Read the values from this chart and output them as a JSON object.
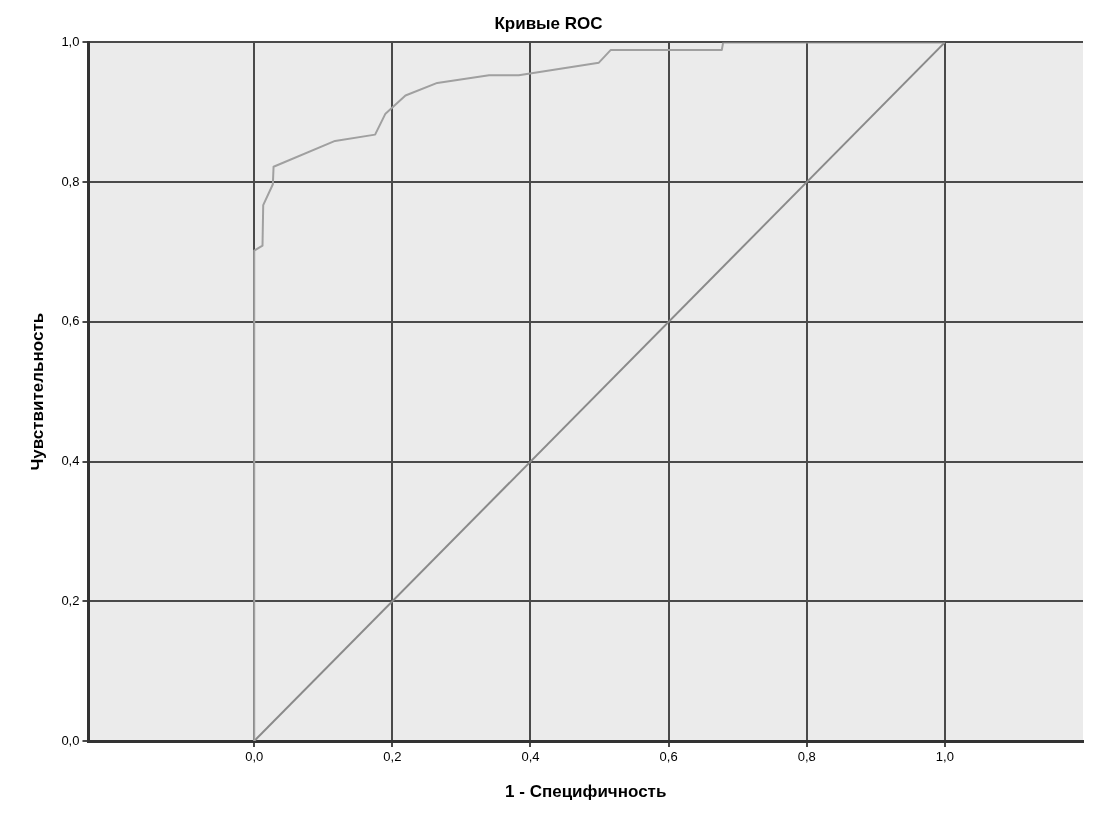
{
  "chart_data": {
    "type": "line",
    "title": "Кривые ROC",
    "xlabel": "1 - Специфичность",
    "ylabel": "Чувствительность",
    "series": [
      {
        "color": "#a0a0a0",
        "x": [
          0,
          0,
          0.012,
          0.013,
          0.027,
          0.028,
          0.117,
          0.175,
          0.19,
          0.219,
          0.265,
          0.34,
          0.383,
          0.499,
          0.516,
          0.677,
          0.679,
          1
        ],
        "values": [
          0,
          0.702,
          0.709,
          0.767,
          0.797,
          0.822,
          0.859,
          0.868,
          0.898,
          0.924,
          0.942,
          0.953,
          0.953,
          0.971,
          0.989,
          0.989,
          1,
          1
        ]
      },
      {
        "color": "#8a8a8a",
        "x": [
          0,
          1
        ],
        "values": [
          0,
          1
        ]
      }
    ],
    "xlim": [
      -0.24,
      1.2
    ],
    "ylim": [
      0,
      1
    ],
    "xticks": [
      {
        "value": 0,
        "label": "0,0"
      },
      {
        "value": 0.2,
        "label": "0,2"
      },
      {
        "value": 0.4,
        "label": "0,4"
      },
      {
        "value": 0.6,
        "label": "0,6"
      },
      {
        "value": 0.8,
        "label": "0,8"
      },
      {
        "value": 1,
        "label": "1,0"
      }
    ],
    "yticks": [
      {
        "value": 0,
        "label": "0,0"
      },
      {
        "value": 0.2,
        "label": "0,2"
      },
      {
        "value": 0.4,
        "label": "0,4"
      },
      {
        "value": 0.6,
        "label": "0,6"
      },
      {
        "value": 0.8,
        "label": "0,8"
      },
      {
        "value": 1,
        "label": "1,0"
      }
    ],
    "grid": true,
    "marker": "none",
    "line_style": "solid"
  }
}
